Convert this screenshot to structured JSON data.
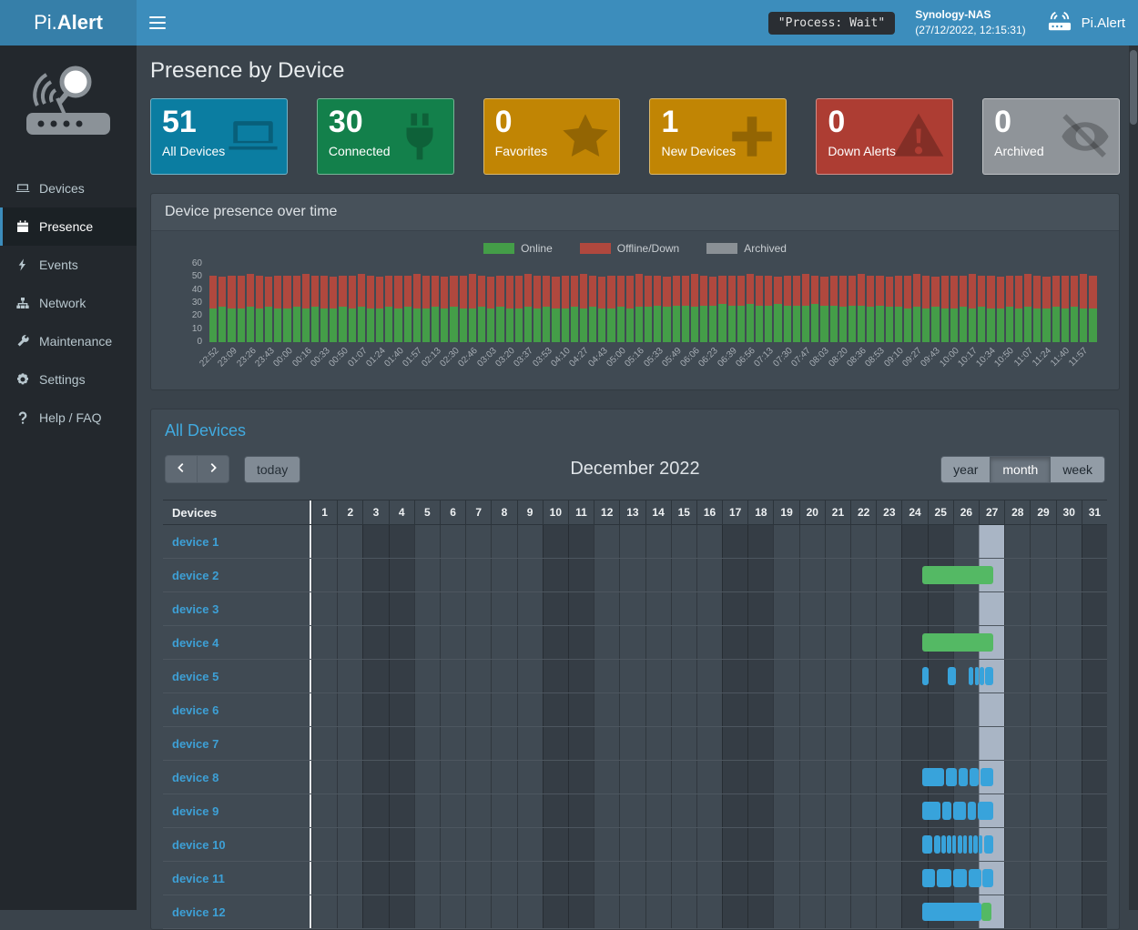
{
  "topbar": {
    "logo_light": "Pi.",
    "logo_bold": "Alert",
    "process_status": "\"Process: Wait\"",
    "nas_name": "Synology-NAS",
    "nas_time": "(27/12/2022, 12:15:31)",
    "brand": "Pi.Alert"
  },
  "sidebar": {
    "items": [
      {
        "id": "devices",
        "label": "Devices",
        "icon": "laptop-icon",
        "active": false
      },
      {
        "id": "presence",
        "label": "Presence",
        "icon": "calendar-icon",
        "active": true
      },
      {
        "id": "events",
        "label": "Events",
        "icon": "bolt-icon",
        "active": false
      },
      {
        "id": "network",
        "label": "Network",
        "icon": "network-icon",
        "active": false
      },
      {
        "id": "maintenance",
        "label": "Maintenance",
        "icon": "wrench-icon",
        "active": false
      },
      {
        "id": "settings",
        "label": "Settings",
        "icon": "gear-icon",
        "active": false
      },
      {
        "id": "help",
        "label": "Help / FAQ",
        "icon": "question-icon",
        "active": false
      }
    ]
  },
  "page": {
    "title": "Presence by Device"
  },
  "cards": [
    {
      "id": "all-devices",
      "value": "51",
      "label": "All Devices",
      "color": "#0b7da1",
      "icon": "laptop-icon"
    },
    {
      "id": "connected",
      "value": "30",
      "label": "Connected",
      "color": "#13804b",
      "icon": "plug-icon"
    },
    {
      "id": "favorites",
      "value": "0",
      "label": "Favorites",
      "color": "#c18504",
      "icon": "star-icon"
    },
    {
      "id": "new-devices",
      "value": "1",
      "label": "New Devices",
      "color": "#c18504",
      "icon": "plus-icon"
    },
    {
      "id": "down-alerts",
      "value": "0",
      "label": "Down Alerts",
      "color": "#ad3d33",
      "icon": "warning-icon"
    },
    {
      "id": "archived",
      "value": "0",
      "label": "Archived",
      "color": "#8f9499",
      "icon": "eye-slash-icon"
    }
  ],
  "chart_panel": {
    "title": "Device presence over time"
  },
  "chart_data": {
    "type": "bar",
    "stacked": true,
    "title": "Device presence over time",
    "ylim": [
      0,
      60
    ],
    "yticks": [
      0,
      10,
      20,
      30,
      40,
      50,
      60
    ],
    "grid": false,
    "legend_position": "top-center",
    "bars_per_tick": 2,
    "x_tick_labels": [
      "22:52",
      "23:09",
      "23:26",
      "23:43",
      "00:00",
      "00:16",
      "00:33",
      "00:50",
      "01:07",
      "01:24",
      "01:40",
      "01:57",
      "02:13",
      "02:30",
      "02:46",
      "03:03",
      "03:20",
      "03:37",
      "03:53",
      "04:10",
      "04:27",
      "04:43",
      "05:00",
      "05:16",
      "05:33",
      "05:49",
      "06:06",
      "06:23",
      "06:39",
      "06:56",
      "07:13",
      "07:30",
      "07:47",
      "08:03",
      "08:20",
      "08:36",
      "08:53",
      "09:10",
      "09:27",
      "09:43",
      "10:00",
      "10:17",
      "10:34",
      "10:50",
      "11:07",
      "11:24",
      "11:40",
      "11:57"
    ],
    "series": [
      {
        "name": "Online",
        "color": "#449d48",
        "values": [
          26,
          27,
          26,
          26,
          27,
          26,
          27,
          26,
          26,
          27,
          26,
          27,
          26,
          26,
          27,
          26,
          27,
          26,
          26,
          27,
          26,
          27,
          26,
          26,
          27,
          26,
          27,
          26,
          26,
          27,
          26,
          27,
          26,
          26,
          27,
          26,
          27,
          26,
          26,
          27,
          26,
          27,
          26,
          26,
          27,
          26,
          27,
          27,
          28,
          27,
          28,
          28,
          27,
          28,
          28,
          29,
          28,
          28,
          29,
          28,
          28,
          29,
          28,
          28,
          28,
          29,
          28,
          28,
          27,
          28,
          28,
          27,
          28,
          27,
          27,
          26,
          27,
          26,
          27,
          26,
          26,
          27,
          26,
          27,
          26,
          26,
          27,
          26,
          27,
          26,
          26,
          27,
          26,
          27,
          26,
          26
        ]
      },
      {
        "name": "Offline/Down",
        "color": "#b0483e",
        "values": [
          25,
          23,
          25,
          25,
          25,
          25,
          23,
          25,
          25,
          24,
          26,
          24,
          25,
          24,
          24,
          25,
          25,
          25,
          24,
          24,
          25,
          24,
          26,
          25,
          24,
          24,
          24,
          25,
          26,
          24,
          24,
          24,
          25,
          25,
          25,
          25,
          24,
          24,
          25,
          24,
          26,
          24,
          24,
          25,
          24,
          25,
          25,
          24,
          23,
          23,
          23,
          23,
          25,
          23,
          22,
          22,
          23,
          23,
          23,
          23,
          23,
          21,
          23,
          23,
          24,
          22,
          22,
          23,
          24,
          23,
          24,
          24,
          23,
          23,
          24,
          25,
          25,
          25,
          23,
          25,
          25,
          24,
          26,
          24,
          25,
          24,
          24,
          25,
          25,
          25,
          24,
          24,
          25,
          24,
          26,
          25
        ]
      },
      {
        "name": "Archived",
        "color": "#8a9095",
        "values_all": 0
      }
    ]
  },
  "calendar": {
    "section_title": "All Devices",
    "toolbar": {
      "today_label": "today",
      "title": "December 2022",
      "views": [
        "year",
        "month",
        "week"
      ],
      "active_view": "month"
    },
    "header_label": "Devices",
    "num_days": 31,
    "weekend_days": [
      3,
      4,
      10,
      11,
      17,
      18,
      24,
      25,
      31
    ],
    "today_day": 27,
    "bar_colors": {
      "online": "#54b964",
      "connected": "#38a3db"
    },
    "rows": [
      {
        "name": "device 1",
        "segments": []
      },
      {
        "name": "device 2",
        "segments": [
          [
            24.8,
            27.55,
            "online"
          ]
        ]
      },
      {
        "name": "device 3",
        "segments": []
      },
      {
        "name": "device 4",
        "segments": [
          [
            24.8,
            27.55,
            "online"
          ]
        ]
      },
      {
        "name": "device 5",
        "segments": [
          [
            24.8,
            25.05,
            "connected"
          ],
          [
            25.8,
            26.1,
            "connected"
          ],
          [
            26.6,
            26.78,
            "connected"
          ],
          [
            26.84,
            27.0,
            "connected"
          ],
          [
            27.05,
            27.2,
            "connected"
          ],
          [
            27.26,
            27.55,
            "connected"
          ]
        ]
      },
      {
        "name": "device 6",
        "segments": []
      },
      {
        "name": "device 7",
        "segments": []
      },
      {
        "name": "device 8",
        "segments": [
          [
            24.8,
            25.65,
            "connected"
          ],
          [
            25.72,
            26.15,
            "connected"
          ],
          [
            26.22,
            26.58,
            "connected"
          ],
          [
            26.65,
            27.0,
            "connected"
          ],
          [
            27.08,
            27.55,
            "connected"
          ]
        ]
      },
      {
        "name": "device 9",
        "segments": [
          [
            24.8,
            25.5,
            "connected"
          ],
          [
            25.57,
            25.95,
            "connected"
          ],
          [
            26.0,
            26.5,
            "connected"
          ],
          [
            26.57,
            26.9,
            "connected"
          ],
          [
            26.97,
            27.55,
            "connected"
          ]
        ]
      },
      {
        "name": "device 10",
        "segments": [
          [
            24.8,
            25.2,
            "connected"
          ],
          [
            25.25,
            25.5,
            "connected"
          ],
          [
            25.55,
            25.72,
            "connected"
          ],
          [
            25.77,
            25.92,
            "connected"
          ],
          [
            25.97,
            26.12,
            "connected"
          ],
          [
            26.17,
            26.35,
            "connected"
          ],
          [
            26.4,
            26.55,
            "connected"
          ],
          [
            26.6,
            26.75,
            "connected"
          ],
          [
            26.8,
            26.95,
            "connected"
          ],
          [
            27.0,
            27.15,
            "connected"
          ],
          [
            27.2,
            27.55,
            "connected"
          ]
        ]
      },
      {
        "name": "device 11",
        "segments": [
          [
            24.8,
            25.3,
            "connected"
          ],
          [
            25.37,
            25.95,
            "connected"
          ],
          [
            26.02,
            26.55,
            "connected"
          ],
          [
            26.62,
            27.1,
            "connected"
          ],
          [
            27.15,
            27.55,
            "connected"
          ]
        ]
      },
      {
        "name": "device 12",
        "segments": [
          [
            24.8,
            27.1,
            "connected"
          ],
          [
            27.1,
            27.5,
            "online"
          ]
        ]
      }
    ]
  }
}
